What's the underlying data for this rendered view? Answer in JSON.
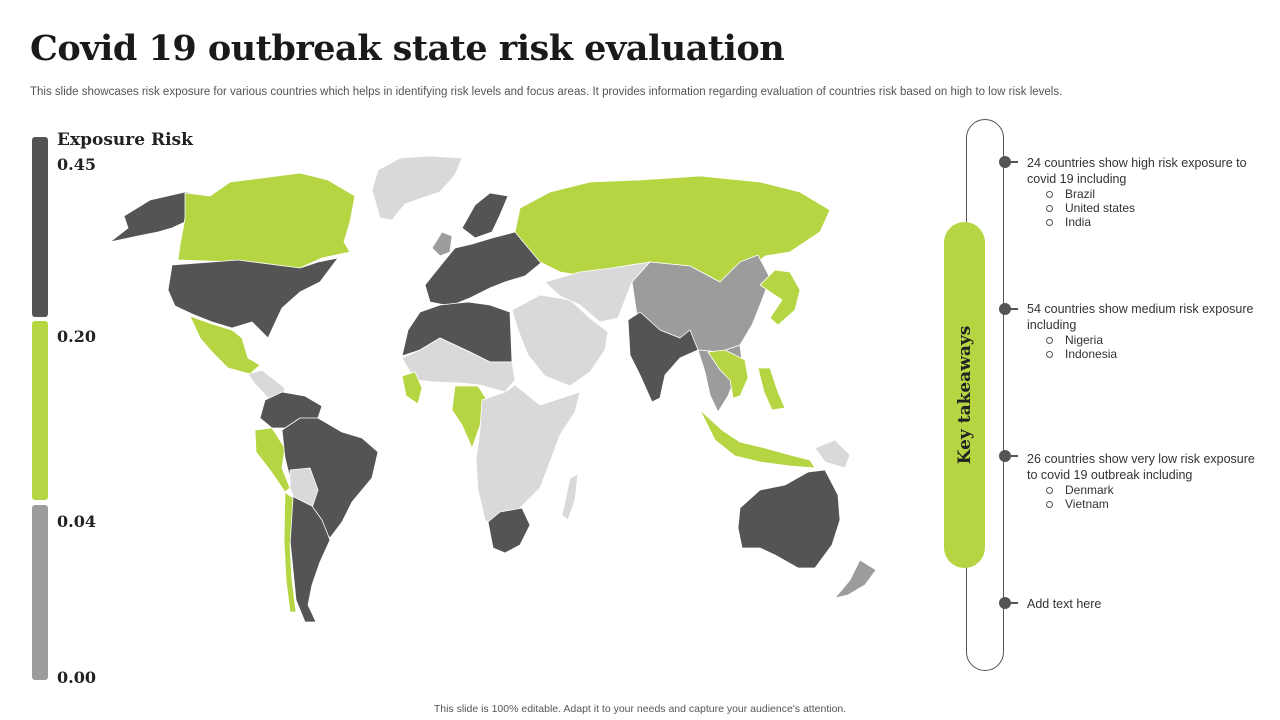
{
  "title": "Covid 19 outbreak state risk evaluation",
  "subtitle": "This slide showcases risk exposure for various countries which helps in identifying risk levels and focus areas. It provides information regarding evaluation of countries risk based on high to low risk levels.",
  "footer": "This slide is 100% editable. Adapt it to your needs and capture your audience's attention.",
  "colors": {
    "high": "#545454",
    "low": "#b5d642",
    "medium": "#9c9c9c",
    "light": "#d9d9d9"
  },
  "scale": {
    "title": "Exposure Risk",
    "labels": [
      "0.45",
      "0.20",
      "0.04",
      "0.00"
    ]
  },
  "takeaways": {
    "label": "Key takeaways",
    "items": [
      {
        "text": "24 countries show high risk exposure to covid 19 including",
        "bullets": [
          "Brazil",
          "United states",
          "India"
        ]
      },
      {
        "text": "54 countries show medium risk exposure including",
        "bullets": [
          "Nigeria",
          "Indonesia"
        ]
      },
      {
        "text": "26 countries show very low risk exposure to covid 19 outbreak including",
        "bullets": [
          "Denmark",
          "Vietnam"
        ]
      },
      {
        "text": "Add text here",
        "bullets": []
      }
    ]
  },
  "map": {
    "regions": [
      {
        "name": "alaska",
        "level": "high"
      },
      {
        "name": "canada",
        "level": "low"
      },
      {
        "name": "greenland",
        "level": "light"
      },
      {
        "name": "usa",
        "level": "high"
      },
      {
        "name": "mexico",
        "level": "low"
      },
      {
        "name": "central-america",
        "level": "light"
      },
      {
        "name": "colombia-venezuela",
        "level": "high"
      },
      {
        "name": "peru",
        "level": "low"
      },
      {
        "name": "brazil",
        "level": "high"
      },
      {
        "name": "bolivia",
        "level": "light"
      },
      {
        "name": "argentina-chile",
        "level": "high"
      },
      {
        "name": "chile-strip",
        "level": "low"
      },
      {
        "name": "western-europe",
        "level": "high"
      },
      {
        "name": "scandinavia",
        "level": "high"
      },
      {
        "name": "uk",
        "level": "medium"
      },
      {
        "name": "russia",
        "level": "low"
      },
      {
        "name": "north-africa",
        "level": "high"
      },
      {
        "name": "sahel",
        "level": "light"
      },
      {
        "name": "west-africa-spot",
        "level": "low"
      },
      {
        "name": "central-africa",
        "level": "low"
      },
      {
        "name": "east-southern-africa",
        "level": "light"
      },
      {
        "name": "south-africa",
        "level": "high"
      },
      {
        "name": "madagascar",
        "level": "light"
      },
      {
        "name": "middle-east",
        "level": "light"
      },
      {
        "name": "central-asia",
        "level": "light"
      },
      {
        "name": "china",
        "level": "medium"
      },
      {
        "name": "india",
        "level": "high"
      },
      {
        "name": "southeast-asia",
        "level": "medium"
      },
      {
        "name": "vietnam",
        "level": "low"
      },
      {
        "name": "japan-korea",
        "level": "low"
      },
      {
        "name": "indonesia",
        "level": "low"
      },
      {
        "name": "philippines",
        "level": "low"
      },
      {
        "name": "papua",
        "level": "light"
      },
      {
        "name": "australia",
        "level": "high"
      },
      {
        "name": "new-zealand",
        "level": "medium"
      }
    ]
  }
}
